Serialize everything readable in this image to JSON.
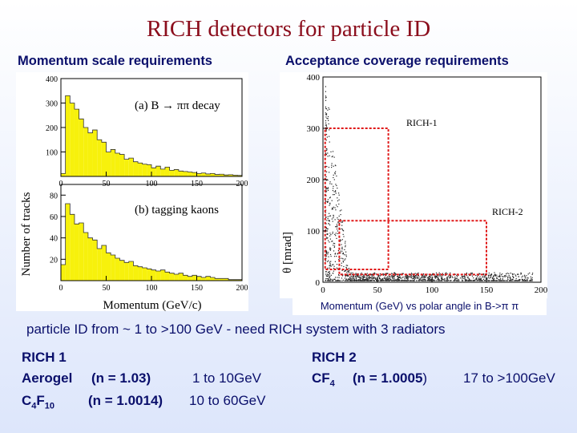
{
  "slide": {
    "title": "RICH detectors for particle ID",
    "left_heading": "Momentum scale requirements",
    "right_heading": "Acceptance coverage requirements",
    "particle_line": "particle ID from  ~ 1 to >100 GeV  - need RICH system with 3 radiators",
    "rich1": {
      "title": "RICH 1",
      "r1_name": "Aerogel",
      "r1_index": "(n = 1.03)",
      "r1_range": "1 to 10GeV",
      "r2_name_main": "C",
      "r2_sub1": "4",
      "r2_mid": "F",
      "r2_sub2": "10",
      "r2_index": "(n = 1.0014)",
      "r2_range": "10 to 60GeV"
    },
    "rich2": {
      "title": "RICH 2",
      "name_main": "CF",
      "name_sub": "4",
      "index": "(n = 1.0005",
      "index_close": ")",
      "range": "17 to >100GeV"
    }
  },
  "chart_data": [
    {
      "type": "bar",
      "title": "(a)  B → ππ  decay",
      "ylabel": "Number of tracks",
      "xlabel": "Momentum (GeV/c)",
      "ylim": [
        0,
        400
      ],
      "x_ticks": [
        "0",
        "50",
        "100",
        "150",
        "200"
      ],
      "y_ticks": [
        "100",
        "200",
        "300",
        "400"
      ],
      "bin_width": 5,
      "values": [
        12,
        330,
        300,
        275,
        235,
        200,
        178,
        190,
        150,
        140,
        100,
        110,
        95,
        90,
        70,
        75,
        60,
        55,
        50,
        48,
        35,
        42,
        30,
        38,
        25,
        28,
        22,
        20,
        18,
        16,
        12,
        14,
        10,
        12,
        8,
        9,
        6,
        7,
        5,
        4
      ]
    },
    {
      "type": "bar",
      "title": "(b)  tagging kaons",
      "ylabel": "Number of tracks",
      "xlabel": "Momentum (GeV/c)",
      "ylim": [
        0,
        90
      ],
      "x_ticks": [
        "0",
        "50",
        "100",
        "150",
        "200"
      ],
      "y_ticks": [
        "20",
        "40",
        "60",
        "80"
      ],
      "bin_width": 5,
      "values": [
        15,
        72,
        62,
        53,
        54,
        45,
        40,
        38,
        30,
        33,
        26,
        24,
        21,
        19,
        17,
        18,
        14,
        13,
        12,
        11,
        10,
        9,
        10,
        8,
        7,
        6,
        7,
        5,
        4,
        5,
        4,
        3,
        4,
        3,
        2,
        2,
        2,
        1,
        1,
        1
      ]
    },
    {
      "type": "scatter",
      "xlabel": "Momentum (GeV) vs polar angle in B->π π",
      "ylabel": "θ  [mrad]",
      "xlim": [
        0,
        200
      ],
      "ylim": [
        0,
        400
      ],
      "x_ticks": [
        "0",
        "50",
        "100",
        "150",
        "200"
      ],
      "y_ticks": [
        "0",
        "100",
        "200",
        "300",
        "400"
      ],
      "regions": [
        {
          "name": "RICH-1",
          "x": [
            2,
            60
          ],
          "y": [
            25,
            300
          ]
        },
        {
          "name": "RICH-2",
          "x": [
            15,
            150
          ],
          "y": [
            15,
            120
          ]
        }
      ]
    }
  ]
}
